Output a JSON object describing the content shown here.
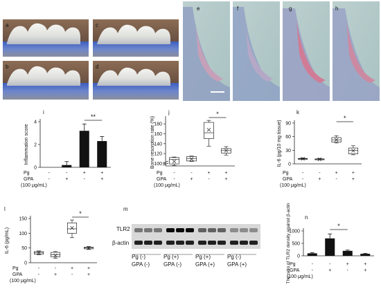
{
  "panels": {
    "a": "a",
    "b": "b",
    "c": "c",
    "d": "d",
    "e": "e",
    "f": "f",
    "g": "g",
    "h": "h",
    "i": "i",
    "j": "j",
    "k": "k",
    "l": "l",
    "m": "m",
    "n": "n"
  },
  "conditions": {
    "pg_label": "Pg",
    "gpa_label": "GPA",
    "gpa_note": "(100 μg/mL)",
    "pg_signs": [
      "-",
      "-",
      "+",
      "+"
    ],
    "gpa_signs": [
      "-",
      "+",
      "-",
      "+"
    ]
  },
  "blot": {
    "tlr2_label": "TLR2",
    "actin_label": "β-actin",
    "groups": [
      {
        "line1": "Pg (-)",
        "line2": "GPA (-)"
      },
      {
        "line1": "Pg (+)",
        "line2": "GPA (-)"
      },
      {
        "line1": "Pg (+)",
        "line2": "GPA (+)"
      },
      {
        "line1": "Pg (-)",
        "line2": "GPA (+)"
      }
    ]
  },
  "chart_data": [
    {
      "panel": "i",
      "type": "bar",
      "ylabel": "Inflammation score",
      "ylim": [
        0,
        4
      ],
      "yticks": [
        "0",
        "2",
        "4"
      ],
      "values": [
        0,
        0.2,
        3.2,
        2.3
      ],
      "errors": [
        0,
        0.3,
        0.6,
        0.4
      ],
      "significance": {
        "between": [
          2,
          3
        ],
        "label": "**"
      }
    },
    {
      "panel": "j",
      "type": "box",
      "ylabel": "Bone resorption rate (%)",
      "yticks": [
        "100",
        "120",
        "140",
        "160",
        "180"
      ],
      "axis_break": true,
      "boxes": [
        {
          "min": 96,
          "q1": 99,
          "median": 108,
          "q3": 112,
          "max": 113,
          "mean": 104
        },
        {
          "min": 104,
          "q1": 105,
          "median": 110,
          "q3": 114,
          "max": 115,
          "mean": 109
        },
        {
          "min": 135,
          "q1": 150,
          "median": 162,
          "q3": 183,
          "max": 187,
          "mean": 168
        },
        {
          "min": 117,
          "q1": 121,
          "median": 126,
          "q3": 130,
          "max": 134,
          "mean": 126
        }
      ],
      "significance": {
        "between": [
          2,
          3
        ],
        "label": "*"
      }
    },
    {
      "panel": "k",
      "type": "box",
      "ylabel": "IL-6  (pg/10 mg tissue)",
      "ylim": [
        0,
        90
      ],
      "yticks": [
        "0",
        "30",
        "60",
        "90"
      ],
      "boxes": [
        {
          "min": 10,
          "q1": 10,
          "median": 11,
          "q3": 12,
          "max": 13,
          "mean": 11
        },
        {
          "min": 9,
          "q1": 9,
          "median": 10,
          "q3": 11,
          "max": 12,
          "mean": 10
        },
        {
          "min": 46,
          "q1": 48,
          "median": 53,
          "q3": 58,
          "max": 62,
          "mean": 53
        },
        {
          "min": 20,
          "q1": 22,
          "median": 30,
          "q3": 35,
          "max": 40,
          "mean": 29
        }
      ],
      "significance": {
        "between": [
          2,
          3
        ],
        "label": "*"
      }
    },
    {
      "panel": "l",
      "type": "box",
      "ylabel": "IL-6  (pg/mL)",
      "ylim": [
        0,
        150
      ],
      "yticks": [
        "0",
        "50",
        "100",
        "150"
      ],
      "boxes": [
        {
          "min": 27,
          "q1": 29,
          "median": 34,
          "q3": 38,
          "max": 40,
          "mean": 34
        },
        {
          "min": 15,
          "q1": 20,
          "median": 27,
          "q3": 35,
          "max": 38,
          "mean": 25
        },
        {
          "min": 85,
          "q1": 100,
          "median": 115,
          "q3": 135,
          "max": 145,
          "mean": 118
        },
        {
          "min": 45,
          "q1": 47,
          "median": 50,
          "q3": 53,
          "max": 55,
          "mean": 50
        }
      ],
      "significance": {
        "between": [
          2,
          3
        ],
        "label": "*"
      }
    },
    {
      "panel": "n",
      "type": "bar",
      "ylabel": "The ratio of TLR2 density against β-actin",
      "ylim": [
        0,
        1000
      ],
      "yticks": [
        "0",
        "500",
        "1000"
      ],
      "values": [
        100,
        700,
        200,
        80
      ],
      "errors": [
        25,
        180,
        30,
        20
      ],
      "significance": {
        "between": [
          1,
          2
        ],
        "label": "*"
      }
    }
  ]
}
